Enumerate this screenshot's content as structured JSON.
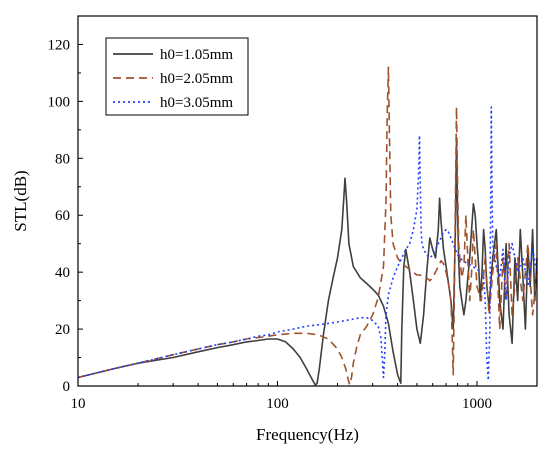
{
  "chart_data": {
    "type": "line",
    "xlabel": "Frequency(Hz)",
    "ylabel": "STL(dB)",
    "xscale": "log",
    "xlim": [
      10,
      2000
    ],
    "ylim": [
      0,
      130
    ],
    "xticks": [
      10,
      100,
      1000
    ],
    "xtick_labels": [
      "10",
      "100",
      "1000"
    ],
    "yticks": [
      0,
      20,
      40,
      60,
      80,
      100,
      120
    ],
    "ytick_labels": [
      "0",
      "20",
      "40",
      "60",
      "80",
      "100",
      "120"
    ],
    "grid": false,
    "legend_position": "top-left",
    "series": [
      {
        "name": "h0=1.05mm",
        "color": "#3f3f3f",
        "dash": "solid",
        "x": [
          10,
          15,
          20,
          30,
          40,
          50,
          60,
          70,
          80,
          90,
          100,
          110,
          120,
          130,
          140,
          150,
          155,
          158,
          162,
          170,
          180,
          190,
          200,
          210,
          215,
          218,
          222,
          228,
          240,
          260,
          280,
          300,
          320,
          340,
          360,
          380,
          400,
          410,
          415,
          420,
          430,
          440,
          460,
          480,
          500,
          520,
          540,
          560,
          580,
          600,
          620,
          640,
          650,
          660,
          680,
          700,
          720,
          740,
          760,
          780,
          790,
          800,
          810,
          820,
          840,
          860,
          880,
          900,
          920,
          940,
          960,
          980,
          1000,
          1020,
          1040,
          1060,
          1080,
          1100,
          1120,
          1150,
          1200,
          1250,
          1300,
          1350,
          1400,
          1450,
          1500,
          1550,
          1600,
          1650,
          1700,
          1750,
          1800,
          1850,
          1900,
          1950,
          2000
        ],
        "y": [
          3,
          6,
          8,
          10,
          12,
          13.5,
          14.5,
          15.5,
          16,
          16.5,
          16.5,
          15.5,
          13,
          10,
          6,
          2,
          0.3,
          1,
          6,
          18,
          30,
          38,
          45,
          55,
          66,
          73,
          65,
          50,
          42,
          38,
          36,
          34,
          32,
          28,
          22,
          12,
          4,
          2,
          1,
          20,
          42,
          48,
          40,
          30,
          20,
          15,
          25,
          40,
          52,
          48,
          45,
          55,
          66,
          58,
          48,
          42,
          36,
          30,
          20,
          55,
          86,
          60,
          44,
          35,
          30,
          25,
          30,
          38,
          45,
          55,
          64,
          60,
          50,
          42,
          30,
          40,
          55,
          48,
          35,
          28,
          45,
          55,
          30,
          20,
          50,
          25,
          15,
          45,
          30,
          55,
          38,
          20,
          48,
          35,
          55,
          30,
          45
        ]
      },
      {
        "name": "h0=2.05mm",
        "color": "#a0522d",
        "dash": "dashed",
        "x": [
          10,
          15,
          20,
          30,
          40,
          50,
          60,
          70,
          80,
          90,
          100,
          120,
          140,
          160,
          180,
          200,
          210,
          220,
          225,
          230,
          235,
          240,
          250,
          260,
          280,
          300,
          320,
          340,
          350,
          355,
          360,
          365,
          370,
          380,
          400,
          420,
          440,
          460,
          480,
          500,
          520,
          540,
          560,
          580,
          600,
          620,
          640,
          660,
          680,
          700,
          720,
          740,
          750,
          760,
          770,
          780,
          790,
          800,
          810,
          820,
          840,
          860,
          880,
          900,
          920,
          940,
          960,
          980,
          1000,
          1050,
          1100,
          1150,
          1200,
          1250,
          1300,
          1350,
          1400,
          1450,
          1500,
          1600,
          1700,
          1800,
          1900,
          2000
        ],
        "y": [
          3,
          6,
          8,
          11,
          13,
          14.5,
          15.5,
          16.5,
          17,
          17.5,
          18,
          18.5,
          18.5,
          18,
          16.5,
          13,
          10,
          6,
          3,
          0.5,
          3,
          8,
          14,
          18,
          21,
          25,
          31,
          42,
          65,
          95,
          112,
          85,
          60,
          50,
          45,
          43,
          42,
          41,
          40,
          39,
          39,
          38,
          38,
          37,
          38,
          40,
          42,
          44,
          43,
          40,
          36,
          30,
          20,
          4,
          30,
          65,
          98,
          70,
          50,
          45,
          38,
          42,
          60,
          45,
          30,
          40,
          55,
          45,
          35,
          30,
          45,
          25,
          40,
          50,
          20,
          45,
          30,
          50,
          25,
          45,
          30,
          50,
          25,
          40
        ]
      },
      {
        "name": "h0=3.05mm",
        "color": "#1f3fff",
        "dash": "dotted",
        "x": [
          10,
          15,
          20,
          30,
          40,
          50,
          60,
          70,
          80,
          90,
          100,
          120,
          140,
          160,
          180,
          200,
          220,
          240,
          260,
          280,
          300,
          320,
          330,
          335,
          340,
          345,
          350,
          360,
          380,
          400,
          420,
          440,
          460,
          480,
          500,
          510,
          515,
          520,
          525,
          530,
          540,
          560,
          580,
          600,
          620,
          640,
          660,
          680,
          700,
          720,
          740,
          760,
          780,
          800,
          850,
          900,
          950,
          1000,
          1050,
          1080,
          1100,
          1120,
          1140,
          1160,
          1170,
          1180,
          1190,
          1200,
          1250,
          1300,
          1350,
          1400,
          1450,
          1500,
          1600,
          1700,
          1800,
          1900,
          2000
        ],
        "y": [
          3,
          6,
          8,
          11,
          13,
          14.5,
          15.5,
          16.5,
          17.5,
          18,
          19,
          20,
          21,
          21.5,
          22,
          22.5,
          23,
          23.5,
          24,
          24,
          23,
          21,
          17,
          10,
          3,
          12,
          25,
          32,
          38,
          42,
          45,
          48,
          50,
          55,
          62,
          75,
          88,
          70,
          55,
          50,
          48,
          46,
          45,
          46,
          48,
          50,
          52,
          54,
          55,
          54,
          52,
          50,
          48,
          46,
          44,
          43,
          42,
          41,
          40,
          38,
          30,
          10,
          2,
          20,
          60,
          98,
          70,
          50,
          42,
          38,
          48,
          30,
          45,
          50,
          40,
          45,
          35,
          48,
          40
        ]
      }
    ]
  }
}
